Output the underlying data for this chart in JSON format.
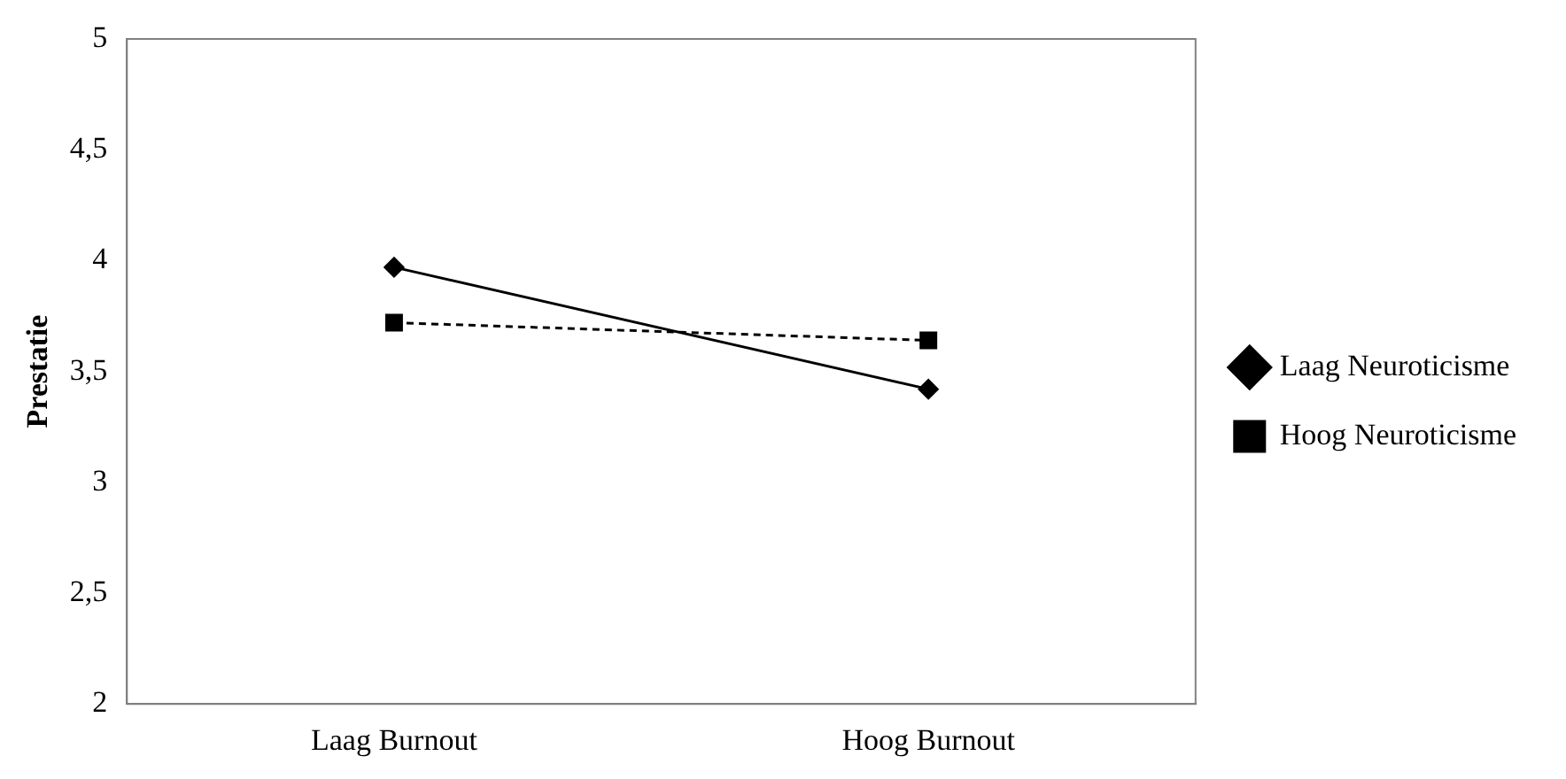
{
  "chart_data": {
    "type": "line",
    "ylabel": "Prestatie",
    "categories": [
      "Laag Burnout",
      "Hoog Burnout"
    ],
    "series": [
      {
        "name": "Laag Neuroticisme",
        "color": "#000000",
        "values": [
          3.97,
          3.42
        ],
        "marker": "diamond",
        "line_style": "solid"
      },
      {
        "name": "Hoog Neuroticisme",
        "color": "#000000",
        "values": [
          3.72,
          3.64
        ],
        "marker": "square",
        "line_style": "dashed"
      }
    ],
    "ylim": [
      2,
      5
    ],
    "yticks": [
      2,
      {
        "value": 2.5,
        "label": "2,5"
      },
      3,
      {
        "value": 3.5,
        "label": "3,5"
      },
      4,
      {
        "value": 4.5,
        "label": "4,5"
      },
      5
    ],
    "grid": false,
    "legend": "right"
  }
}
